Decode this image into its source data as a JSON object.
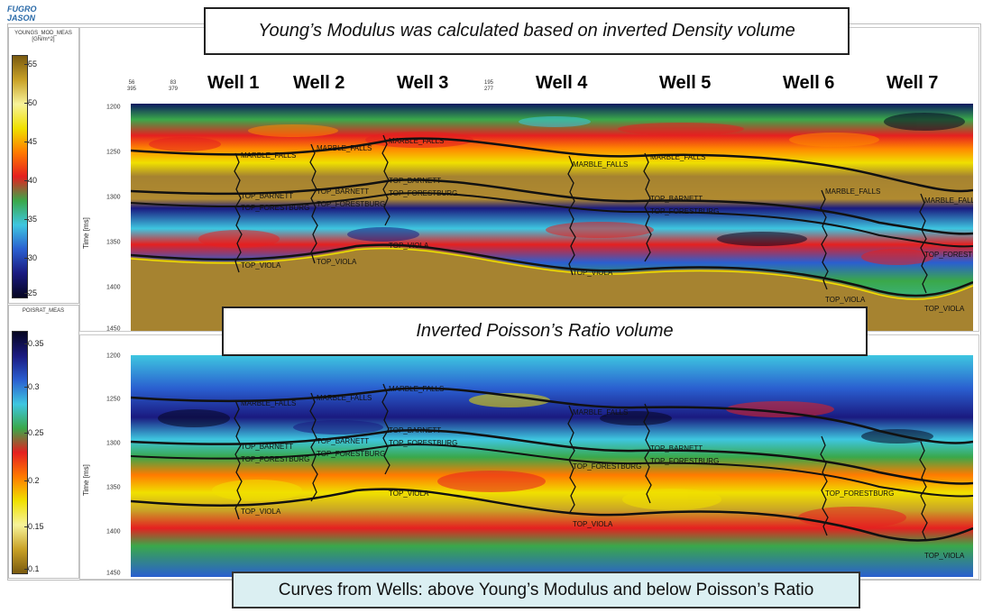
{
  "app": {
    "logo_text": "FUGRO JASON"
  },
  "annotations": {
    "top_title": "Young’s Modulus was calculated based on inverted Density volume",
    "middle_title": "Inverted Poisson’s Ratio volume",
    "caption": "Curves from Wells: above Young’s Modulus and below Poisson’s Ratio"
  },
  "colorbar_top": {
    "title": "YOUNGS_MOD_MEAS [GN/m^2]",
    "ticks": [
      "55",
      "50",
      "45",
      "40",
      "35",
      "30",
      "25"
    ],
    "colors": [
      "#7a5a10",
      "#c9a227",
      "#f7f39a",
      "#f0e000",
      "#ff7a00",
      "#e52020",
      "#3aa84a",
      "#3ec6e0",
      "#2a5fd0",
      "#1a1a80",
      "#050520"
    ]
  },
  "colorbar_bottom": {
    "title": "POISRAT_MEAS",
    "ticks": [
      "0.35",
      "0.3",
      "0.25",
      "0.2",
      "0.15",
      "0.1"
    ],
    "colors": [
      "#050520",
      "#1a1a80",
      "#2a5fd0",
      "#3ec6e0",
      "#3aa84a",
      "#e52020",
      "#ff7a00",
      "#f0e000",
      "#f7f39a",
      "#c9a227",
      "#7a5a10"
    ]
  },
  "trace_numbers": [
    {
      "top": "56",
      "bottom": "395"
    },
    {
      "top": "83",
      "bottom": "379"
    },
    {
      "top": "195",
      "bottom": "277"
    }
  ],
  "wells": [
    "Well 1",
    "Well 2",
    "Well 3",
    "Well 4",
    "Well 5",
    "Well 6",
    "Well 7"
  ],
  "time_axis": {
    "label": "Time [ms]",
    "ticks": [
      "1200",
      "1250",
      "1300",
      "1350",
      "1400",
      "1450"
    ]
  },
  "horizon_names": [
    "MARBLE_FALLS",
    "TOP_BARNETT",
    "TOP_FORESTBURG",
    "TOP_VIOLA"
  ]
}
